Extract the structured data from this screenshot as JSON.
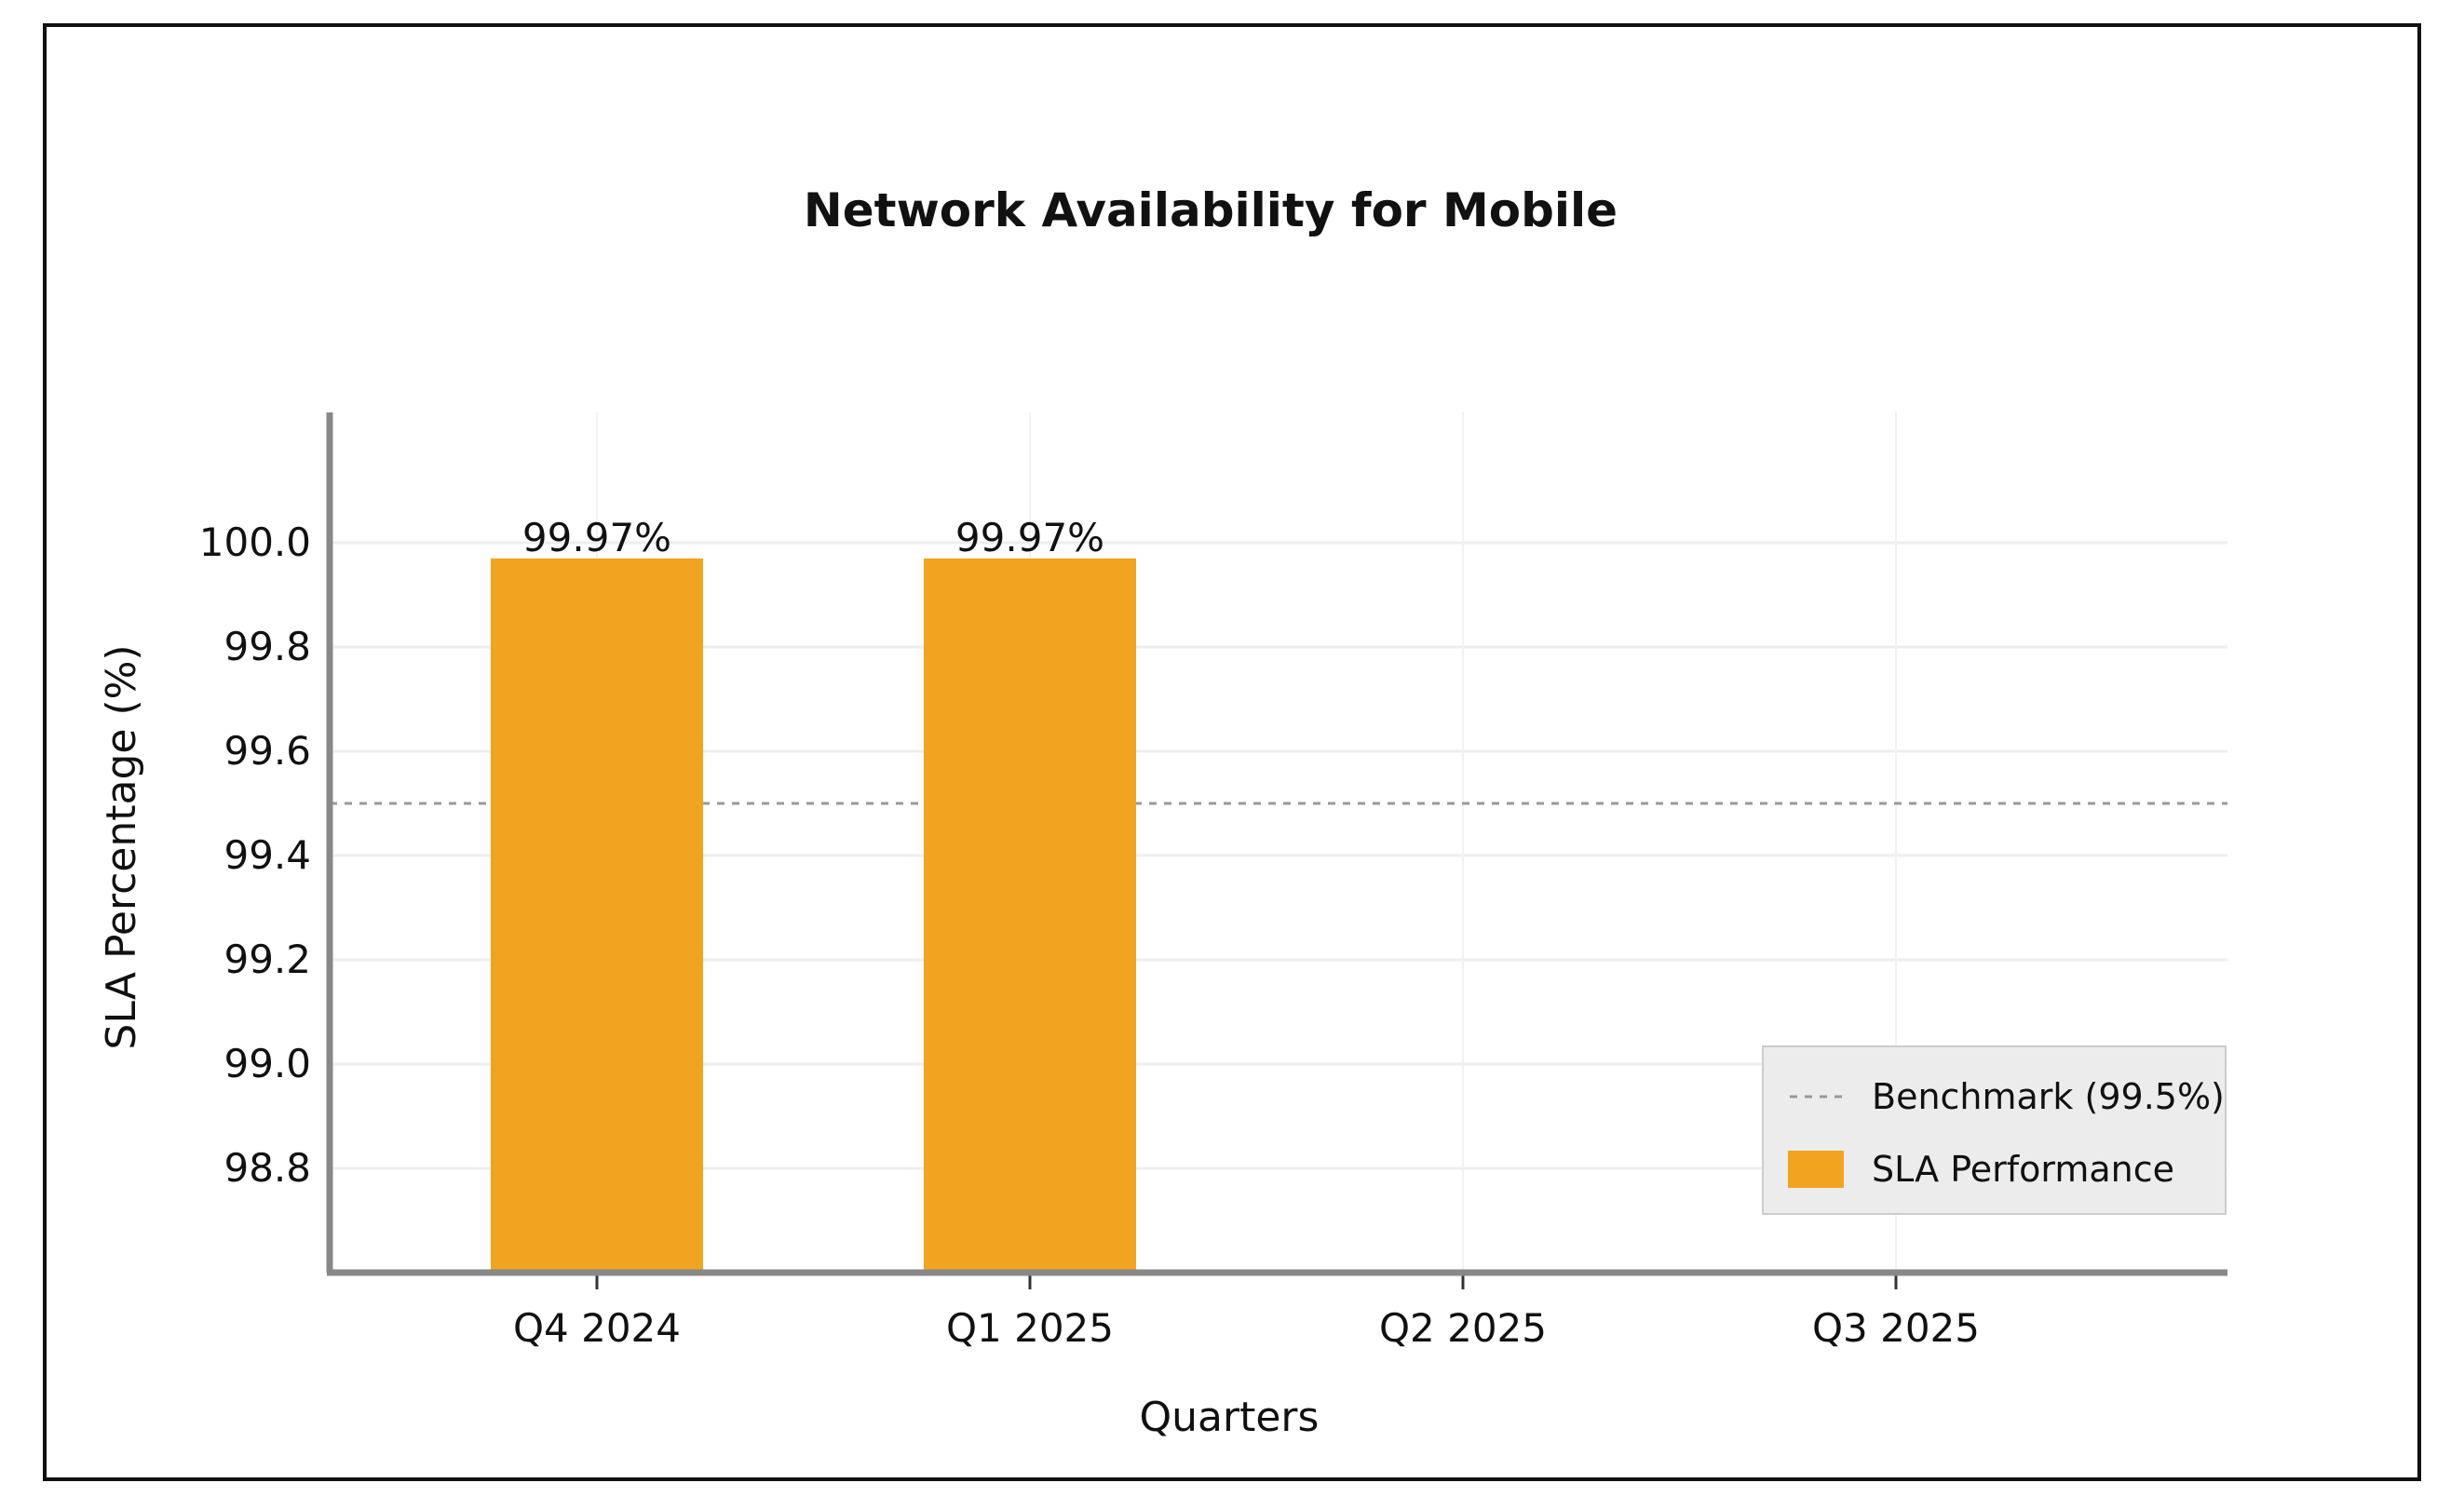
{
  "chart_data": {
    "type": "bar",
    "title": "Network Availability for Mobile",
    "xlabel": "Quarters",
    "ylabel": "SLA Percentage (%)",
    "categories": [
      "Q4 2024",
      "Q1 2025",
      "Q2 2025",
      "Q3 2025"
    ],
    "series": [
      {
        "name": "SLA Performance",
        "values": [
          99.97,
          99.97,
          null,
          null
        ],
        "data_labels": [
          "99.97%",
          "99.97%",
          "",
          ""
        ],
        "color": "#F0A420"
      }
    ],
    "benchmark": {
      "name": "Benchmark (99.5%)",
      "value": 99.5,
      "color": "#999999",
      "style": "dashed"
    },
    "ylim": [
      98.6,
      100.25
    ],
    "yticks": [
      98.8,
      99.0,
      99.2,
      99.4,
      99.6,
      99.8,
      100.0
    ],
    "ytick_labels": [
      "98.8",
      "99.0",
      "99.2",
      "99.4",
      "99.6",
      "99.8",
      "100.0"
    ],
    "grid": true,
    "legend_position": "bottom-right"
  }
}
